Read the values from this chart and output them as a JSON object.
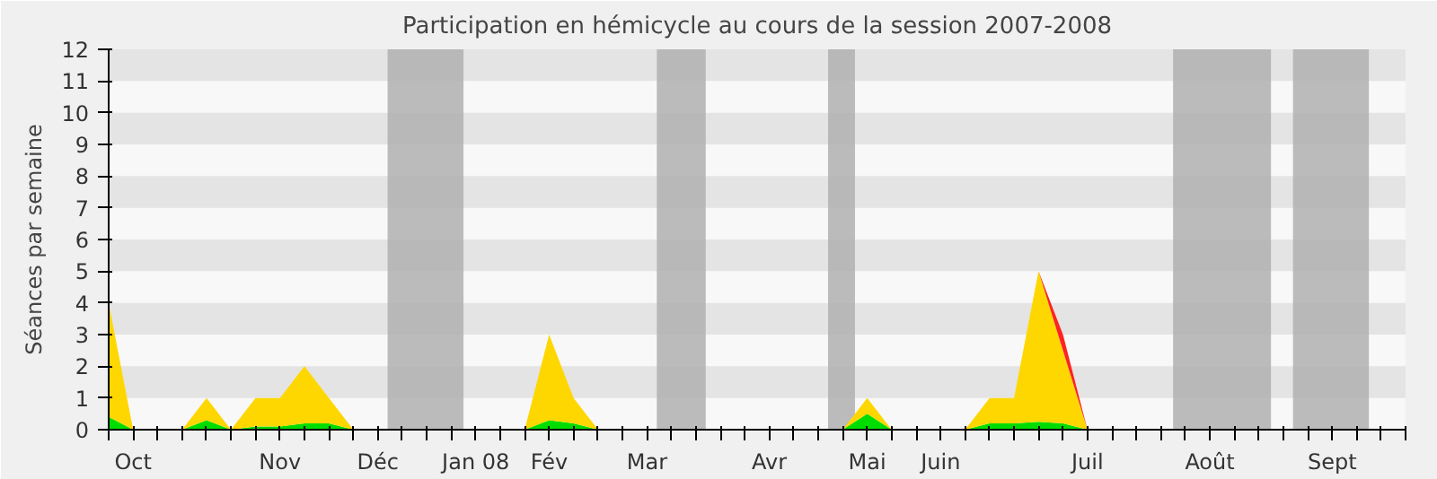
{
  "chart_data": {
    "type": "area",
    "title": "Participation en hémicycle au cours de la session 2007-2008",
    "ylabel": "Séances par semaine",
    "categories": [
      null,
      "Oct",
      null,
      null,
      null,
      null,
      null,
      "Nov",
      null,
      null,
      null,
      "Déc",
      null,
      null,
      null,
      "Jan 08",
      null,
      null,
      "Fév",
      null,
      null,
      null,
      "Mar",
      null,
      null,
      null,
      null,
      "Avr",
      null,
      null,
      null,
      "Mai",
      null,
      null,
      "Juin",
      null,
      null,
      null,
      null,
      null,
      "Juil",
      null,
      null,
      null,
      null,
      "Août",
      null,
      null,
      null,
      null,
      "Sept",
      null,
      null,
      null
    ],
    "stacked": true,
    "series": [
      {
        "color": "#00dd00",
        "values": [
          0.4,
          0,
          0,
          0,
          0.3,
          0,
          0.1,
          0.1,
          0.2,
          0.2,
          0,
          0,
          0,
          0,
          0,
          0,
          0,
          0,
          0.3,
          0.2,
          0,
          0,
          0,
          0,
          0,
          0,
          0,
          0,
          0,
          0,
          0,
          0.5,
          0,
          0,
          0,
          0,
          0.2,
          0.2,
          0.25,
          0.2,
          0,
          0,
          0,
          0,
          0,
          0,
          0,
          0,
          0,
          0,
          0,
          0,
          0,
          0
        ]
      },
      {
        "color": "#ffd700",
        "values": [
          3.6,
          0,
          0,
          0,
          0.7,
          0,
          0.9,
          0.9,
          1.8,
          0.8,
          0,
          0,
          0,
          0,
          0,
          0,
          0,
          0,
          2.7,
          0.8,
          0,
          0,
          0,
          0,
          0,
          0,
          0,
          0,
          0,
          0,
          0,
          0.5,
          0,
          0,
          0,
          0,
          0.8,
          0.8,
          4.75,
          2.3,
          0,
          0,
          0,
          0,
          0,
          0,
          0,
          0,
          0,
          0,
          0,
          0,
          0,
          0
        ]
      },
      {
        "color": "#ff2222",
        "values": [
          null,
          null,
          null,
          null,
          null,
          null,
          null,
          null,
          null,
          null,
          null,
          null,
          null,
          null,
          null,
          null,
          null,
          null,
          null,
          null,
          null,
          null,
          null,
          null,
          null,
          null,
          null,
          null,
          null,
          null,
          null,
          null,
          null,
          null,
          null,
          null,
          null,
          null,
          0,
          0.5,
          0,
          null,
          null,
          null,
          null,
          null,
          null,
          null,
          null,
          null,
          null,
          null,
          null,
          null
        ]
      }
    ],
    "ylim": [
      0,
      12
    ],
    "yticks": [
      0,
      1,
      2,
      3,
      4,
      5,
      6,
      7,
      8,
      9,
      10,
      11,
      12
    ],
    "grid": false
  }
}
